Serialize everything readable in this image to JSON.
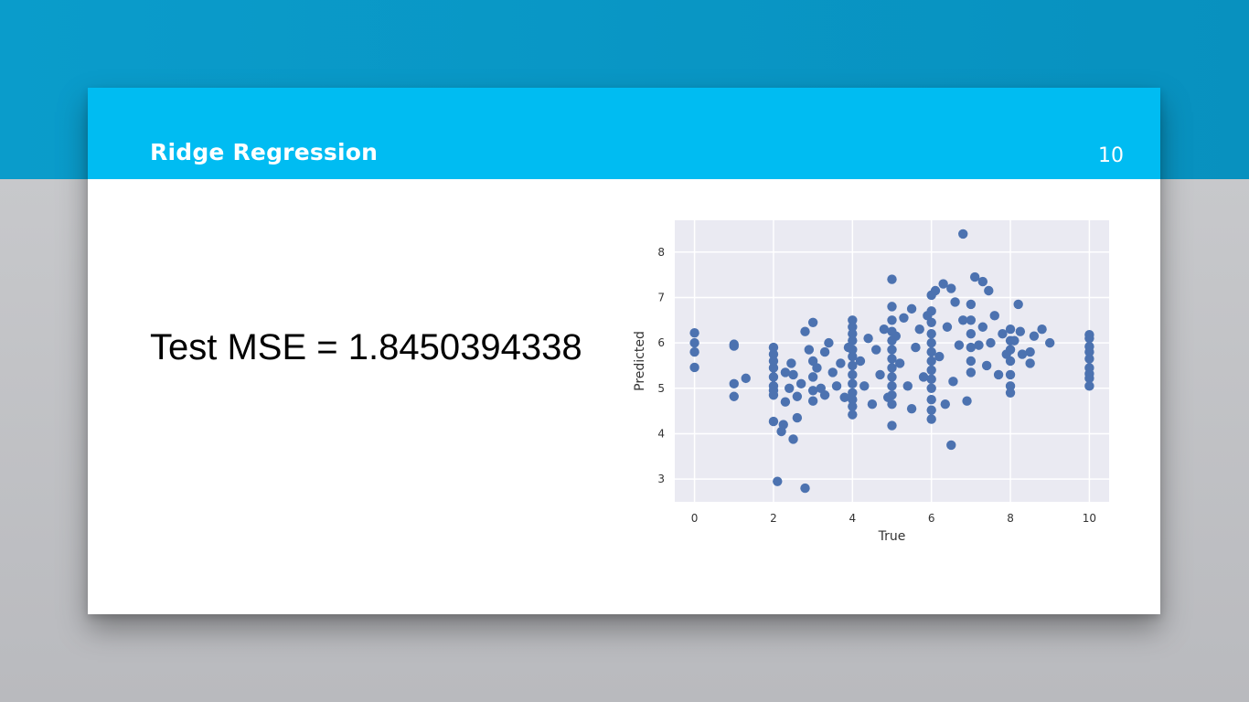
{
  "slide": {
    "title": "Ridge Regression",
    "page_number": "10",
    "mse_label": "Test MSE = 1.8450394338"
  },
  "colors": {
    "top_band": "#0a9ccb",
    "header": "#00bcf2",
    "plot_background": "#eaeaf2",
    "grid": "#ffffff",
    "marker": "#4c72b0"
  },
  "chart_data": {
    "type": "scatter",
    "title": "",
    "xlabel": "True",
    "ylabel": "Predicted",
    "xlim": [
      -0.5,
      10.5
    ],
    "ylim": [
      2.5,
      8.7
    ],
    "xticks": [
      0,
      2,
      4,
      6,
      8,
      10
    ],
    "yticks": [
      3,
      4,
      5,
      6,
      7,
      8
    ],
    "grid": true,
    "series": [
      {
        "points": [
          [
            0,
            6.22
          ],
          [
            0,
            6.0
          ],
          [
            0,
            5.8
          ],
          [
            0,
            5.46
          ],
          [
            1,
            5.97
          ],
          [
            1,
            5.93
          ],
          [
            1,
            5.1
          ],
          [
            1,
            4.82
          ],
          [
            1.3,
            5.22
          ],
          [
            2,
            5.9
          ],
          [
            2,
            5.75
          ],
          [
            2,
            5.6
          ],
          [
            2,
            5.45
          ],
          [
            2,
            5.25
          ],
          [
            2,
            5.05
          ],
          [
            2,
            4.95
          ],
          [
            2,
            4.85
          ],
          [
            2,
            4.27
          ],
          [
            2.1,
            2.95
          ],
          [
            2.2,
            4.05
          ],
          [
            2.25,
            4.2
          ],
          [
            2.3,
            4.7
          ],
          [
            2.3,
            5.35
          ],
          [
            2.4,
            5.0
          ],
          [
            2.45,
            5.55
          ],
          [
            2.5,
            5.3
          ],
          [
            2.5,
            3.88
          ],
          [
            2.6,
            4.35
          ],
          [
            2.6,
            4.82
          ],
          [
            2.7,
            5.1
          ],
          [
            2.8,
            6.25
          ],
          [
            2.8,
            2.8
          ],
          [
            2.9,
            5.85
          ],
          [
            3.0,
            6.45
          ],
          [
            3.0,
            5.6
          ],
          [
            3.0,
            5.25
          ],
          [
            3.0,
            4.95
          ],
          [
            3.0,
            4.72
          ],
          [
            3.1,
            5.45
          ],
          [
            3.2,
            5.0
          ],
          [
            3.3,
            5.8
          ],
          [
            3.3,
            4.85
          ],
          [
            3.4,
            6.0
          ],
          [
            3.5,
            5.35
          ],
          [
            3.6,
            5.05
          ],
          [
            3.7,
            5.55
          ],
          [
            3.8,
            4.8
          ],
          [
            3.9,
            5.9
          ],
          [
            4,
            6.5
          ],
          [
            4,
            6.35
          ],
          [
            4,
            6.2
          ],
          [
            4,
            6.05
          ],
          [
            4,
            5.85
          ],
          [
            4,
            5.7
          ],
          [
            4,
            5.5
          ],
          [
            4,
            5.3
          ],
          [
            4,
            5.1
          ],
          [
            4,
            4.9
          ],
          [
            4,
            4.75
          ],
          [
            4,
            4.6
          ],
          [
            4,
            4.42
          ],
          [
            4.2,
            5.6
          ],
          [
            4.3,
            5.05
          ],
          [
            4.4,
            6.1
          ],
          [
            4.5,
            4.65
          ],
          [
            4.6,
            5.85
          ],
          [
            4.7,
            5.3
          ],
          [
            4.8,
            6.3
          ],
          [
            4.9,
            4.8
          ],
          [
            5,
            7.4
          ],
          [
            5,
            6.8
          ],
          [
            5,
            6.5
          ],
          [
            5,
            6.25
          ],
          [
            5,
            6.05
          ],
          [
            5,
            5.85
          ],
          [
            5,
            5.65
          ],
          [
            5,
            5.45
          ],
          [
            5,
            5.25
          ],
          [
            5,
            5.05
          ],
          [
            5,
            4.85
          ],
          [
            5,
            4.65
          ],
          [
            5,
            4.18
          ],
          [
            5.1,
            6.15
          ],
          [
            5.2,
            5.55
          ],
          [
            5.3,
            6.55
          ],
          [
            5.4,
            5.05
          ],
          [
            5.5,
            6.75
          ],
          [
            5.5,
            4.55
          ],
          [
            5.6,
            5.9
          ],
          [
            5.7,
            6.3
          ],
          [
            5.8,
            5.25
          ],
          [
            5.9,
            6.6
          ],
          [
            6,
            7.05
          ],
          [
            6,
            6.7
          ],
          [
            6,
            6.45
          ],
          [
            6,
            6.2
          ],
          [
            6,
            6.0
          ],
          [
            6,
            5.8
          ],
          [
            6,
            5.6
          ],
          [
            6,
            5.4
          ],
          [
            6,
            5.2
          ],
          [
            6,
            5.0
          ],
          [
            6,
            4.75
          ],
          [
            6,
            4.52
          ],
          [
            6,
            4.32
          ],
          [
            6.1,
            7.15
          ],
          [
            6.2,
            5.7
          ],
          [
            6.3,
            7.3
          ],
          [
            6.35,
            4.65
          ],
          [
            6.4,
            6.35
          ],
          [
            6.5,
            7.2
          ],
          [
            6.5,
            3.75
          ],
          [
            6.55,
            5.15
          ],
          [
            6.6,
            6.9
          ],
          [
            6.7,
            5.95
          ],
          [
            6.8,
            8.4
          ],
          [
            6.8,
            6.5
          ],
          [
            6.9,
            4.72
          ],
          [
            7,
            6.85
          ],
          [
            7,
            6.5
          ],
          [
            7,
            6.2
          ],
          [
            7,
            5.9
          ],
          [
            7,
            5.6
          ],
          [
            7,
            5.35
          ],
          [
            7.1,
            7.45
          ],
          [
            7.2,
            5.95
          ],
          [
            7.3,
            6.35
          ],
          [
            7.3,
            7.35
          ],
          [
            7.4,
            5.5
          ],
          [
            7.45,
            7.15
          ],
          [
            7.5,
            6.0
          ],
          [
            7.6,
            6.6
          ],
          [
            7.7,
            5.3
          ],
          [
            7.8,
            6.2
          ],
          [
            7.9,
            5.75
          ],
          [
            8,
            6.3
          ],
          [
            8,
            6.05
          ],
          [
            8,
            5.85
          ],
          [
            8,
            5.6
          ],
          [
            8,
            5.3
          ],
          [
            8,
            5.05
          ],
          [
            8,
            4.9
          ],
          [
            8.1,
            6.05
          ],
          [
            8.2,
            6.85
          ],
          [
            8.25,
            6.25
          ],
          [
            8.3,
            5.75
          ],
          [
            8.5,
            5.8
          ],
          [
            8.5,
            5.55
          ],
          [
            8.6,
            6.15
          ],
          [
            8.8,
            6.3
          ],
          [
            9,
            6.0
          ],
          [
            10,
            6.18
          ],
          [
            10,
            6.1
          ],
          [
            10,
            5.92
          ],
          [
            10,
            5.8
          ],
          [
            10,
            5.65
          ],
          [
            10,
            5.45
          ],
          [
            10,
            5.32
          ],
          [
            10,
            5.22
          ],
          [
            10,
            5.05
          ]
        ]
      }
    ]
  }
}
